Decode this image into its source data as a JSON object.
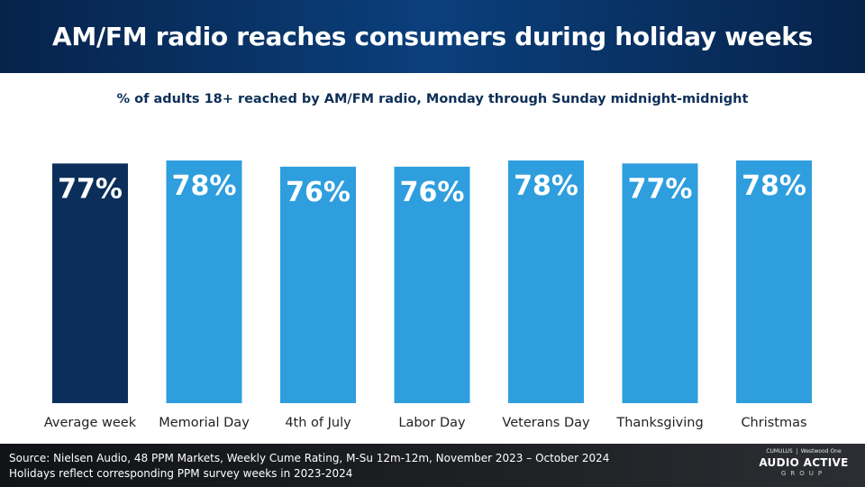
{
  "header": {
    "title": "AM/FM radio reaches consumers during holiday weeks"
  },
  "chart_data": {
    "type": "bar",
    "title": "% of adults 18+ reached by AM/FM radio, Monday through Sunday midnight-midnight",
    "categories": [
      "Average week",
      "Memorial Day",
      "4th of July",
      "Labor Day",
      "Veterans Day",
      "Thanksgiving",
      "Christmas"
    ],
    "values": [
      77,
      78,
      76,
      76,
      78,
      77,
      78
    ],
    "data_labels": [
      "77%",
      "78%",
      "76%",
      "76%",
      "78%",
      "77%",
      "78%"
    ],
    "unit": "%",
    "ylim": [
      0,
      100
    ],
    "grid": false,
    "legend": "none",
    "colors": {
      "highlight": "#0b2f5a",
      "default": "#2e9ede"
    },
    "highlight_index": 0
  },
  "footer": {
    "source": "Source: Nielsen Audio, 48 PPM Markets, Weekly Cume Rating, M-Su  12m-12m, November 2023 – October 2024",
    "note": "Holidays reflect corresponding PPM survey weeks in 2023-2024"
  },
  "logo": {
    "brand_left": "CUMULUS",
    "brand_right": "Westwood One",
    "name": "AUDIO ACTIVE",
    "tagline": "GROUP"
  }
}
